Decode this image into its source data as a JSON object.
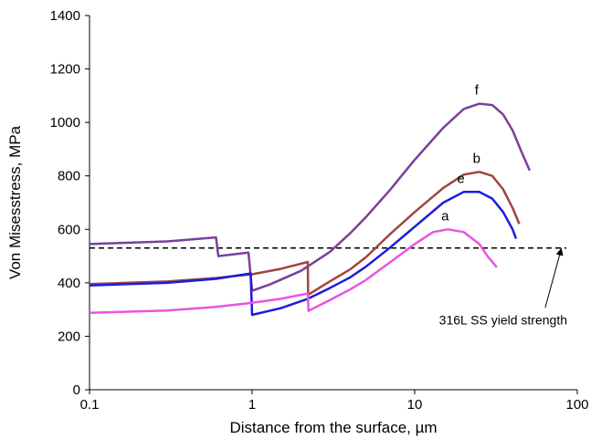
{
  "chart_data": {
    "type": "line",
    "xlabel": "Distance  from  the surface, µm",
    "ylabel": "Von  Misesstress,  MPa",
    "x_scale": "log",
    "xlim": [
      0.1,
      100
    ],
    "ylim": [
      0,
      1400
    ],
    "x_ticks": [
      0.1,
      1,
      10,
      100
    ],
    "x_tick_labels": [
      "0.1",
      "1",
      "10",
      "100"
    ],
    "y_ticks": [
      0,
      200,
      400,
      600,
      800,
      1000,
      1200,
      1400
    ],
    "y_tick_labels": [
      "0",
      "200",
      "400",
      "600",
      "800",
      "1000",
      "1200",
      "1400"
    ],
    "grid": false,
    "series": [
      {
        "name": "f",
        "color": "#7b3f99",
        "points": [
          [
            0.1,
            545
          ],
          [
            0.3,
            555
          ],
          [
            0.6,
            570
          ],
          [
            0.62,
            500
          ],
          [
            0.95,
            513
          ],
          [
            1.0,
            370
          ],
          [
            1.3,
            395
          ],
          [
            2,
            445
          ],
          [
            3,
            515
          ],
          [
            4,
            585
          ],
          [
            5,
            645
          ],
          [
            7,
            745
          ],
          [
            10,
            860
          ],
          [
            15,
            980
          ],
          [
            20,
            1050
          ],
          [
            25,
            1070
          ],
          [
            30,
            1065
          ],
          [
            35,
            1030
          ],
          [
            40,
            970
          ],
          [
            45,
            895
          ],
          [
            51,
            820
          ]
        ]
      },
      {
        "name": "b",
        "color": "#a0453f",
        "points": [
          [
            0.1,
            395
          ],
          [
            0.3,
            405
          ],
          [
            0.6,
            418
          ],
          [
            1.0,
            432
          ],
          [
            1.5,
            452
          ],
          [
            2.2,
            478
          ],
          [
            2.21,
            355
          ],
          [
            3,
            405
          ],
          [
            4,
            450
          ],
          [
            5,
            495
          ],
          [
            7,
            580
          ],
          [
            10,
            665
          ],
          [
            15,
            755
          ],
          [
            20,
            805
          ],
          [
            25,
            815
          ],
          [
            30,
            800
          ],
          [
            35,
            750
          ],
          [
            40,
            680
          ],
          [
            44,
            620
          ]
        ]
      },
      {
        "name": "e",
        "color": "#1c1cdc",
        "points": [
          [
            0.1,
            390
          ],
          [
            0.3,
            400
          ],
          [
            0.6,
            415
          ],
          [
            0.98,
            435
          ],
          [
            1.0,
            280
          ],
          [
            1.5,
            305
          ],
          [
            2.2,
            340
          ],
          [
            3,
            380
          ],
          [
            4,
            420
          ],
          [
            5,
            460
          ],
          [
            7,
            530
          ],
          [
            10,
            610
          ],
          [
            15,
            700
          ],
          [
            20,
            740
          ],
          [
            25,
            740
          ],
          [
            30,
            715
          ],
          [
            35,
            665
          ],
          [
            40,
            600
          ],
          [
            42,
            565
          ]
        ]
      },
      {
        "name": "a",
        "color": "#e855e0",
        "points": [
          [
            0.1,
            288
          ],
          [
            0.3,
            296
          ],
          [
            0.6,
            310
          ],
          [
            1.0,
            325
          ],
          [
            1.5,
            340
          ],
          [
            2.2,
            360
          ],
          [
            2.22,
            295
          ],
          [
            3,
            335
          ],
          [
            4,
            375
          ],
          [
            5,
            410
          ],
          [
            7,
            475
          ],
          [
            10,
            545
          ],
          [
            13,
            590
          ],
          [
            16,
            600
          ],
          [
            20,
            590
          ],
          [
            25,
            545
          ],
          [
            28,
            500
          ],
          [
            32,
            458
          ]
        ]
      }
    ],
    "reference_line": {
      "value": 530,
      "style": "dashed",
      "color": "#000000"
    },
    "annotation": {
      "text": "316L SS yield strength",
      "arrow_to": [
        80,
        530
      ],
      "text_at": [
        35,
        245
      ]
    }
  }
}
